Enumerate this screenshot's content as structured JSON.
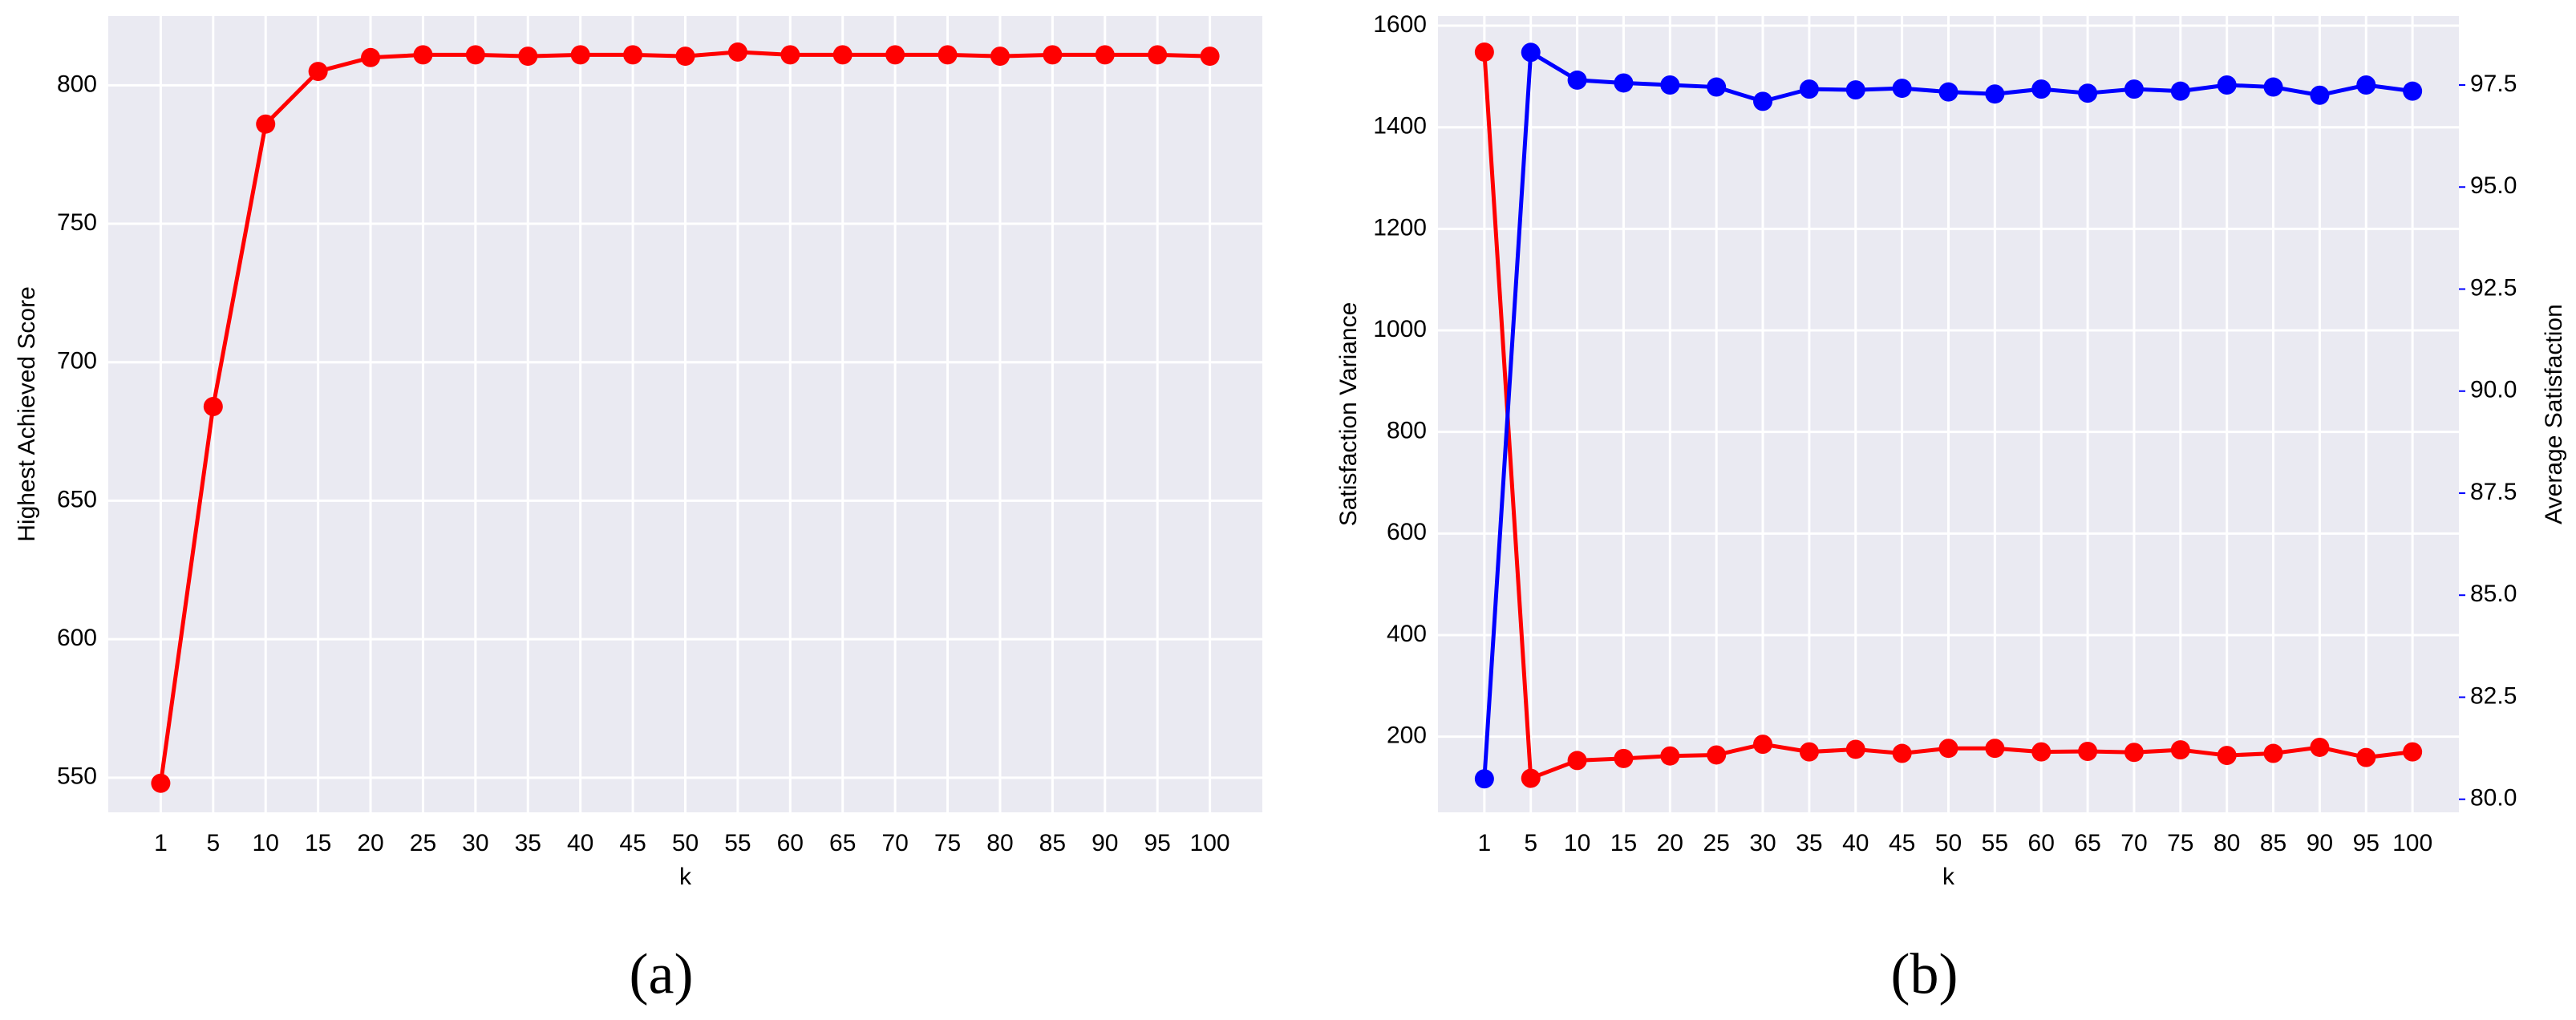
{
  "chart_data": [
    {
      "type": "line",
      "caption": "(a)",
      "xlabel": "k",
      "ylabel": "Highest Achieved Score",
      "categories": [
        "1",
        "5",
        "10",
        "15",
        "20",
        "25",
        "30",
        "35",
        "40",
        "45",
        "50",
        "55",
        "60",
        "65",
        "70",
        "75",
        "80",
        "85",
        "90",
        "95",
        "100"
      ],
      "ylim": [
        537.5,
        825
      ],
      "yticks": [
        550,
        600,
        650,
        700,
        750,
        800
      ],
      "grid": true,
      "series": [
        {
          "color": "#ff0000",
          "values": [
            548,
            684,
            786,
            805,
            810,
            811,
            811,
            810.5,
            811,
            811,
            810.5,
            812,
            811,
            811,
            811,
            811,
            810.5,
            811,
            811,
            811,
            810.5
          ]
        }
      ]
    },
    {
      "type": "line",
      "caption": "(b)",
      "xlabel": "k",
      "ylabel": "Satisfaction Variance",
      "y2label": "Average Satisfaction",
      "categories": [
        "1",
        "5",
        "10",
        "15",
        "20",
        "25",
        "30",
        "35",
        "40",
        "45",
        "50",
        "55",
        "60",
        "65",
        "70",
        "75",
        "80",
        "85",
        "90",
        "95",
        "100"
      ],
      "ylim": [
        51,
        1619
      ],
      "yticks": [
        200,
        400,
        600,
        800,
        1000,
        1200,
        1400,
        1600
      ],
      "y2lim": [
        79.68,
        99.19
      ],
      "y2ticks": [
        {
          "value": 80,
          "label": "80.0"
        },
        {
          "value": 82.5,
          "label": "82.5"
        },
        {
          "value": 85,
          "label": "85.0"
        },
        {
          "value": 87.5,
          "label": "87.5"
        },
        {
          "value": 90,
          "label": "90.0"
        },
        {
          "value": 92.5,
          "label": "92.5"
        },
        {
          "value": 95,
          "label": "95.0"
        },
        {
          "value": 97.5,
          "label": "97.5"
        }
      ],
      "grid": true,
      "series": [
        {
          "color": "#ff0000",
          "values": [
            1548,
            118,
            153,
            157,
            162,
            164,
            185,
            170,
            175,
            167,
            177,
            177,
            170,
            171,
            169,
            174,
            163,
            167,
            179,
            159,
            170
          ]
        },
        {
          "color": "#0000ff",
          "axis": "y2",
          "values": [
            80.5,
            98.3,
            97.62,
            97.55,
            97.5,
            97.45,
            97.1,
            97.4,
            97.38,
            97.42,
            97.33,
            97.28,
            97.4,
            97.3,
            97.4,
            97.35,
            97.5,
            97.45,
            97.25,
            97.5,
            97.35
          ]
        }
      ]
    }
  ]
}
